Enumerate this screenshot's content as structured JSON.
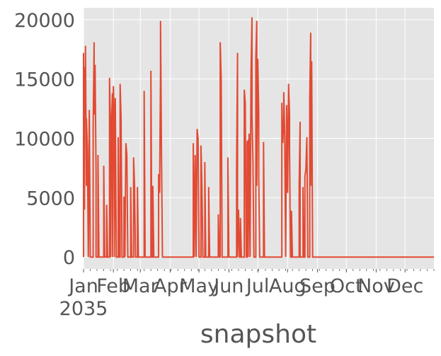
{
  "chart_data": {
    "type": "line",
    "title": "",
    "xlabel": "snapshot",
    "ylabel": "",
    "x_range": [
      "2035-01-01",
      "2035-12-31"
    ],
    "ylim": [
      -1000,
      21000
    ],
    "yticks": [
      0,
      5000,
      10000,
      15000,
      20000
    ],
    "xtick_labels": [
      {
        "date": "2035-01-01",
        "label": "Jan",
        "label2": "2035"
      },
      {
        "date": "2035-02-01",
        "label": "Feb"
      },
      {
        "date": "2035-03-01",
        "label": "Mar"
      },
      {
        "date": "2035-04-01",
        "label": "Apr"
      },
      {
        "date": "2035-05-01",
        "label": "May"
      },
      {
        "date": "2035-06-01",
        "label": "Jun"
      },
      {
        "date": "2035-07-01",
        "label": "Jul"
      },
      {
        "date": "2035-08-01",
        "label": "Aug"
      },
      {
        "date": "2035-09-01",
        "label": "Sep"
      },
      {
        "date": "2035-10-01",
        "label": "Oct"
      },
      {
        "date": "2035-11-01",
        "label": "Nov"
      },
      {
        "date": "2035-12-01",
        "label": "Dec"
      }
    ],
    "grid": true,
    "legend": "none",
    "colors": {
      "series": "#E24A33",
      "plot_bg": "#E5E5E5",
      "grid": "#FFFFFF",
      "text": "#555555"
    },
    "series": [
      {
        "points": [
          [
            "2035-01-01",
            0
          ],
          [
            "2035-01-01",
            17200
          ],
          [
            "2035-01-02",
            4000
          ],
          [
            "2035-01-02",
            16000
          ],
          [
            "2035-01-03",
            13800
          ],
          [
            "2035-01-03",
            17800
          ],
          [
            "2035-01-04",
            6000
          ],
          [
            "2035-01-04",
            11700
          ],
          [
            "2035-01-05",
            9300
          ],
          [
            "2035-01-06",
            0
          ],
          [
            "2035-01-07",
            12400
          ],
          [
            "2035-01-08",
            0
          ],
          [
            "2035-01-09",
            0
          ],
          [
            "2035-01-11",
            0
          ],
          [
            "2035-01-11",
            11000
          ],
          [
            "2035-01-12",
            18100
          ],
          [
            "2035-01-12",
            12000
          ],
          [
            "2035-01-13",
            16200
          ],
          [
            "2035-01-14",
            7000
          ],
          [
            "2035-01-14",
            0
          ],
          [
            "2035-01-16",
            0
          ],
          [
            "2035-01-16",
            8600
          ],
          [
            "2035-01-17",
            0
          ],
          [
            "2035-01-22",
            0
          ],
          [
            "2035-01-22",
            7700
          ],
          [
            "2035-01-23",
            0
          ],
          [
            "2035-01-25",
            0
          ],
          [
            "2035-01-25",
            4400
          ],
          [
            "2035-01-26",
            0
          ],
          [
            "2035-01-28",
            0
          ],
          [
            "2035-01-28",
            15100
          ],
          [
            "2035-01-29",
            11000
          ],
          [
            "2035-01-29",
            0
          ],
          [
            "2035-01-30",
            11200
          ],
          [
            "2035-01-31",
            13800
          ],
          [
            "2035-01-31",
            0
          ],
          [
            "2035-02-01",
            14400
          ],
          [
            "2035-02-02",
            11200
          ],
          [
            "2035-02-02",
            0
          ],
          [
            "2035-02-03",
            13400
          ],
          [
            "2035-02-04",
            0
          ],
          [
            "2035-02-06",
            0
          ],
          [
            "2035-02-06",
            10100
          ],
          [
            "2035-02-07",
            0
          ],
          [
            "2035-02-08",
            0
          ],
          [
            "2035-02-08",
            14600
          ],
          [
            "2035-02-09",
            11700
          ],
          [
            "2035-02-10",
            0
          ],
          [
            "2035-02-12",
            0
          ],
          [
            "2035-02-12",
            5100
          ],
          [
            "2035-02-13",
            0
          ],
          [
            "2035-02-14",
            9600
          ],
          [
            "2035-02-15",
            8600
          ],
          [
            "2035-02-16",
            0
          ],
          [
            "2035-02-19",
            0
          ],
          [
            "2035-02-19",
            5900
          ],
          [
            "2035-02-20",
            0
          ],
          [
            "2035-02-22",
            0
          ],
          [
            "2035-02-22",
            8400
          ],
          [
            "2035-02-23",
            6000
          ],
          [
            "2035-02-24",
            0
          ],
          [
            "2035-02-26",
            0
          ],
          [
            "2035-02-26",
            5900
          ],
          [
            "2035-02-27",
            0
          ],
          [
            "2035-03-05",
            0
          ],
          [
            "2035-03-05",
            14000
          ],
          [
            "2035-03-06",
            0
          ],
          [
            "2035-03-12",
            0
          ],
          [
            "2035-03-12",
            15700
          ],
          [
            "2035-03-13",
            0
          ],
          [
            "2035-03-14",
            0
          ],
          [
            "2035-03-14",
            6000
          ],
          [
            "2035-03-15",
            0
          ],
          [
            "2035-03-20",
            0
          ],
          [
            "2035-03-20",
            7000
          ],
          [
            "2035-03-21",
            5400
          ],
          [
            "2035-03-22",
            15500
          ],
          [
            "2035-03-22",
            19900
          ],
          [
            "2035-03-23",
            8500
          ],
          [
            "2035-03-24",
            0
          ],
          [
            "2035-04-25",
            0
          ],
          [
            "2035-04-25",
            9600
          ],
          [
            "2035-04-26",
            0
          ],
          [
            "2035-04-27",
            8600
          ],
          [
            "2035-04-28",
            0
          ],
          [
            "2035-04-29",
            10800
          ],
          [
            "2035-04-30",
            10000
          ],
          [
            "2035-05-01",
            0
          ],
          [
            "2035-05-03",
            0
          ],
          [
            "2035-05-03",
            9400
          ],
          [
            "2035-05-04",
            5900
          ],
          [
            "2035-05-05",
            0
          ],
          [
            "2035-05-07",
            0
          ],
          [
            "2035-05-07",
            8000
          ],
          [
            "2035-05-08",
            0
          ],
          [
            "2035-05-11",
            0
          ],
          [
            "2035-05-11",
            5900
          ],
          [
            "2035-05-12",
            0
          ],
          [
            "2035-05-21",
            0
          ],
          [
            "2035-05-21",
            3600
          ],
          [
            "2035-05-22",
            0
          ],
          [
            "2035-05-23",
            0
          ],
          [
            "2035-05-23",
            18100
          ],
          [
            "2035-05-24",
            15000
          ],
          [
            "2035-05-25",
            0
          ],
          [
            "2035-05-31",
            0
          ],
          [
            "2035-05-31",
            8400
          ],
          [
            "2035-06-01",
            0
          ],
          [
            "2035-06-09",
            0
          ],
          [
            "2035-06-09",
            7400
          ],
          [
            "2035-06-10",
            17200
          ],
          [
            "2035-06-10",
            0
          ],
          [
            "2035-06-11",
            4000
          ],
          [
            "2035-06-12",
            0
          ],
          [
            "2035-06-13",
            0
          ],
          [
            "2035-06-13",
            3300
          ],
          [
            "2035-06-14",
            0
          ],
          [
            "2035-06-17",
            0
          ],
          [
            "2035-06-17",
            14100
          ],
          [
            "2035-06-18",
            13000
          ],
          [
            "2035-06-19",
            0
          ],
          [
            "2035-06-20",
            0
          ],
          [
            "2035-06-20",
            9700
          ],
          [
            "2035-06-21",
            9800
          ],
          [
            "2035-06-21",
            0
          ],
          [
            "2035-06-22",
            10400
          ],
          [
            "2035-06-23",
            0
          ],
          [
            "2035-06-24",
            15500
          ],
          [
            "2035-06-25",
            20200
          ],
          [
            "2035-06-25",
            12000
          ],
          [
            "2035-06-26",
            8000
          ],
          [
            "2035-06-27",
            0
          ],
          [
            "2035-06-29",
            0
          ],
          [
            "2035-06-29",
            16800
          ],
          [
            "2035-06-30",
            19900
          ],
          [
            "2035-06-30",
            6000
          ],
          [
            "2035-07-01",
            16700
          ],
          [
            "2035-07-02",
            12200
          ],
          [
            "2035-07-02",
            6800
          ],
          [
            "2035-07-03",
            0
          ],
          [
            "2035-07-07",
            0
          ],
          [
            "2035-07-07",
            9700
          ],
          [
            "2035-07-08",
            0
          ],
          [
            "2035-07-26",
            0
          ],
          [
            "2035-07-26",
            13000
          ],
          [
            "2035-07-27",
            9600
          ],
          [
            "2035-07-28",
            11500
          ],
          [
            "2035-07-28",
            13900
          ],
          [
            "2035-07-29",
            10300
          ],
          [
            "2035-07-30",
            0
          ],
          [
            "2035-07-31",
            12800
          ],
          [
            "2035-08-01",
            5400
          ],
          [
            "2035-08-02",
            14600
          ],
          [
            "2035-08-03",
            12000
          ],
          [
            "2035-08-03",
            9100
          ],
          [
            "2035-08-04",
            0
          ],
          [
            "2035-08-05",
            0
          ],
          [
            "2035-08-05",
            3900
          ],
          [
            "2035-08-06",
            0
          ],
          [
            "2035-08-13",
            0
          ],
          [
            "2035-08-13",
            6000
          ],
          [
            "2035-08-14",
            11400
          ],
          [
            "2035-08-14",
            0
          ],
          [
            "2035-08-17",
            0
          ],
          [
            "2035-08-17",
            5900
          ],
          [
            "2035-08-18",
            0
          ],
          [
            "2035-08-19",
            0
          ],
          [
            "2035-08-19",
            6800
          ],
          [
            "2035-08-20",
            7400
          ],
          [
            "2035-08-21",
            10100
          ],
          [
            "2035-08-22",
            0
          ],
          [
            "2035-08-24",
            0
          ],
          [
            "2035-08-24",
            13200
          ],
          [
            "2035-08-25",
            18900
          ],
          [
            "2035-08-25",
            6000
          ],
          [
            "2035-08-26",
            16500
          ],
          [
            "2035-08-27",
            0
          ]
        ]
      }
    ]
  }
}
